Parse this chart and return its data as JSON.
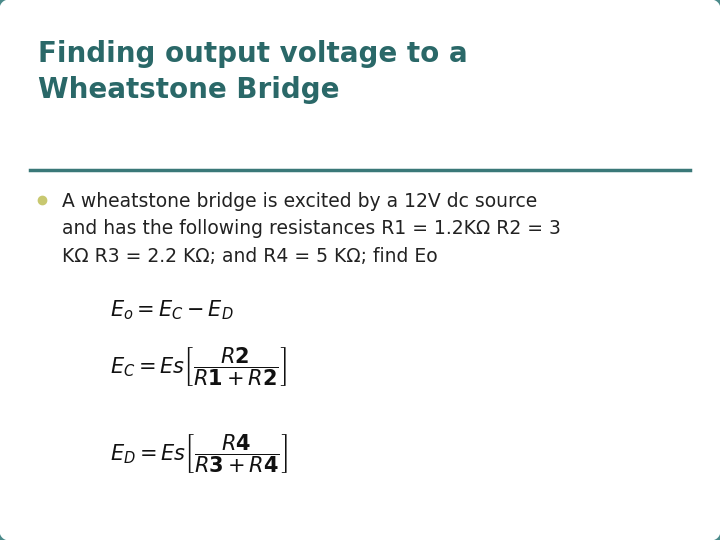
{
  "background_color": "#ffffff",
  "border_color": "#4a8a8a",
  "title_text": "Finding output voltage to a\nWheatstone Bridge",
  "title_color": "#2a6868",
  "title_fontsize": 20,
  "bullet_text": "A wheatstone bridge is excited by a 12V dc source\nand has the following resistances R1 = 1.2KΩ R2 = 3\nKΩ R3 = 2.2 KΩ; and R4 = 5 KΩ; find Eo",
  "bullet_color": "#222222",
  "bullet_fontsize": 13.5,
  "bullet_dot_color": "#c8c870",
  "line_color": "#3a7878",
  "eq_color": "#111111",
  "eq_fontsize": 15
}
